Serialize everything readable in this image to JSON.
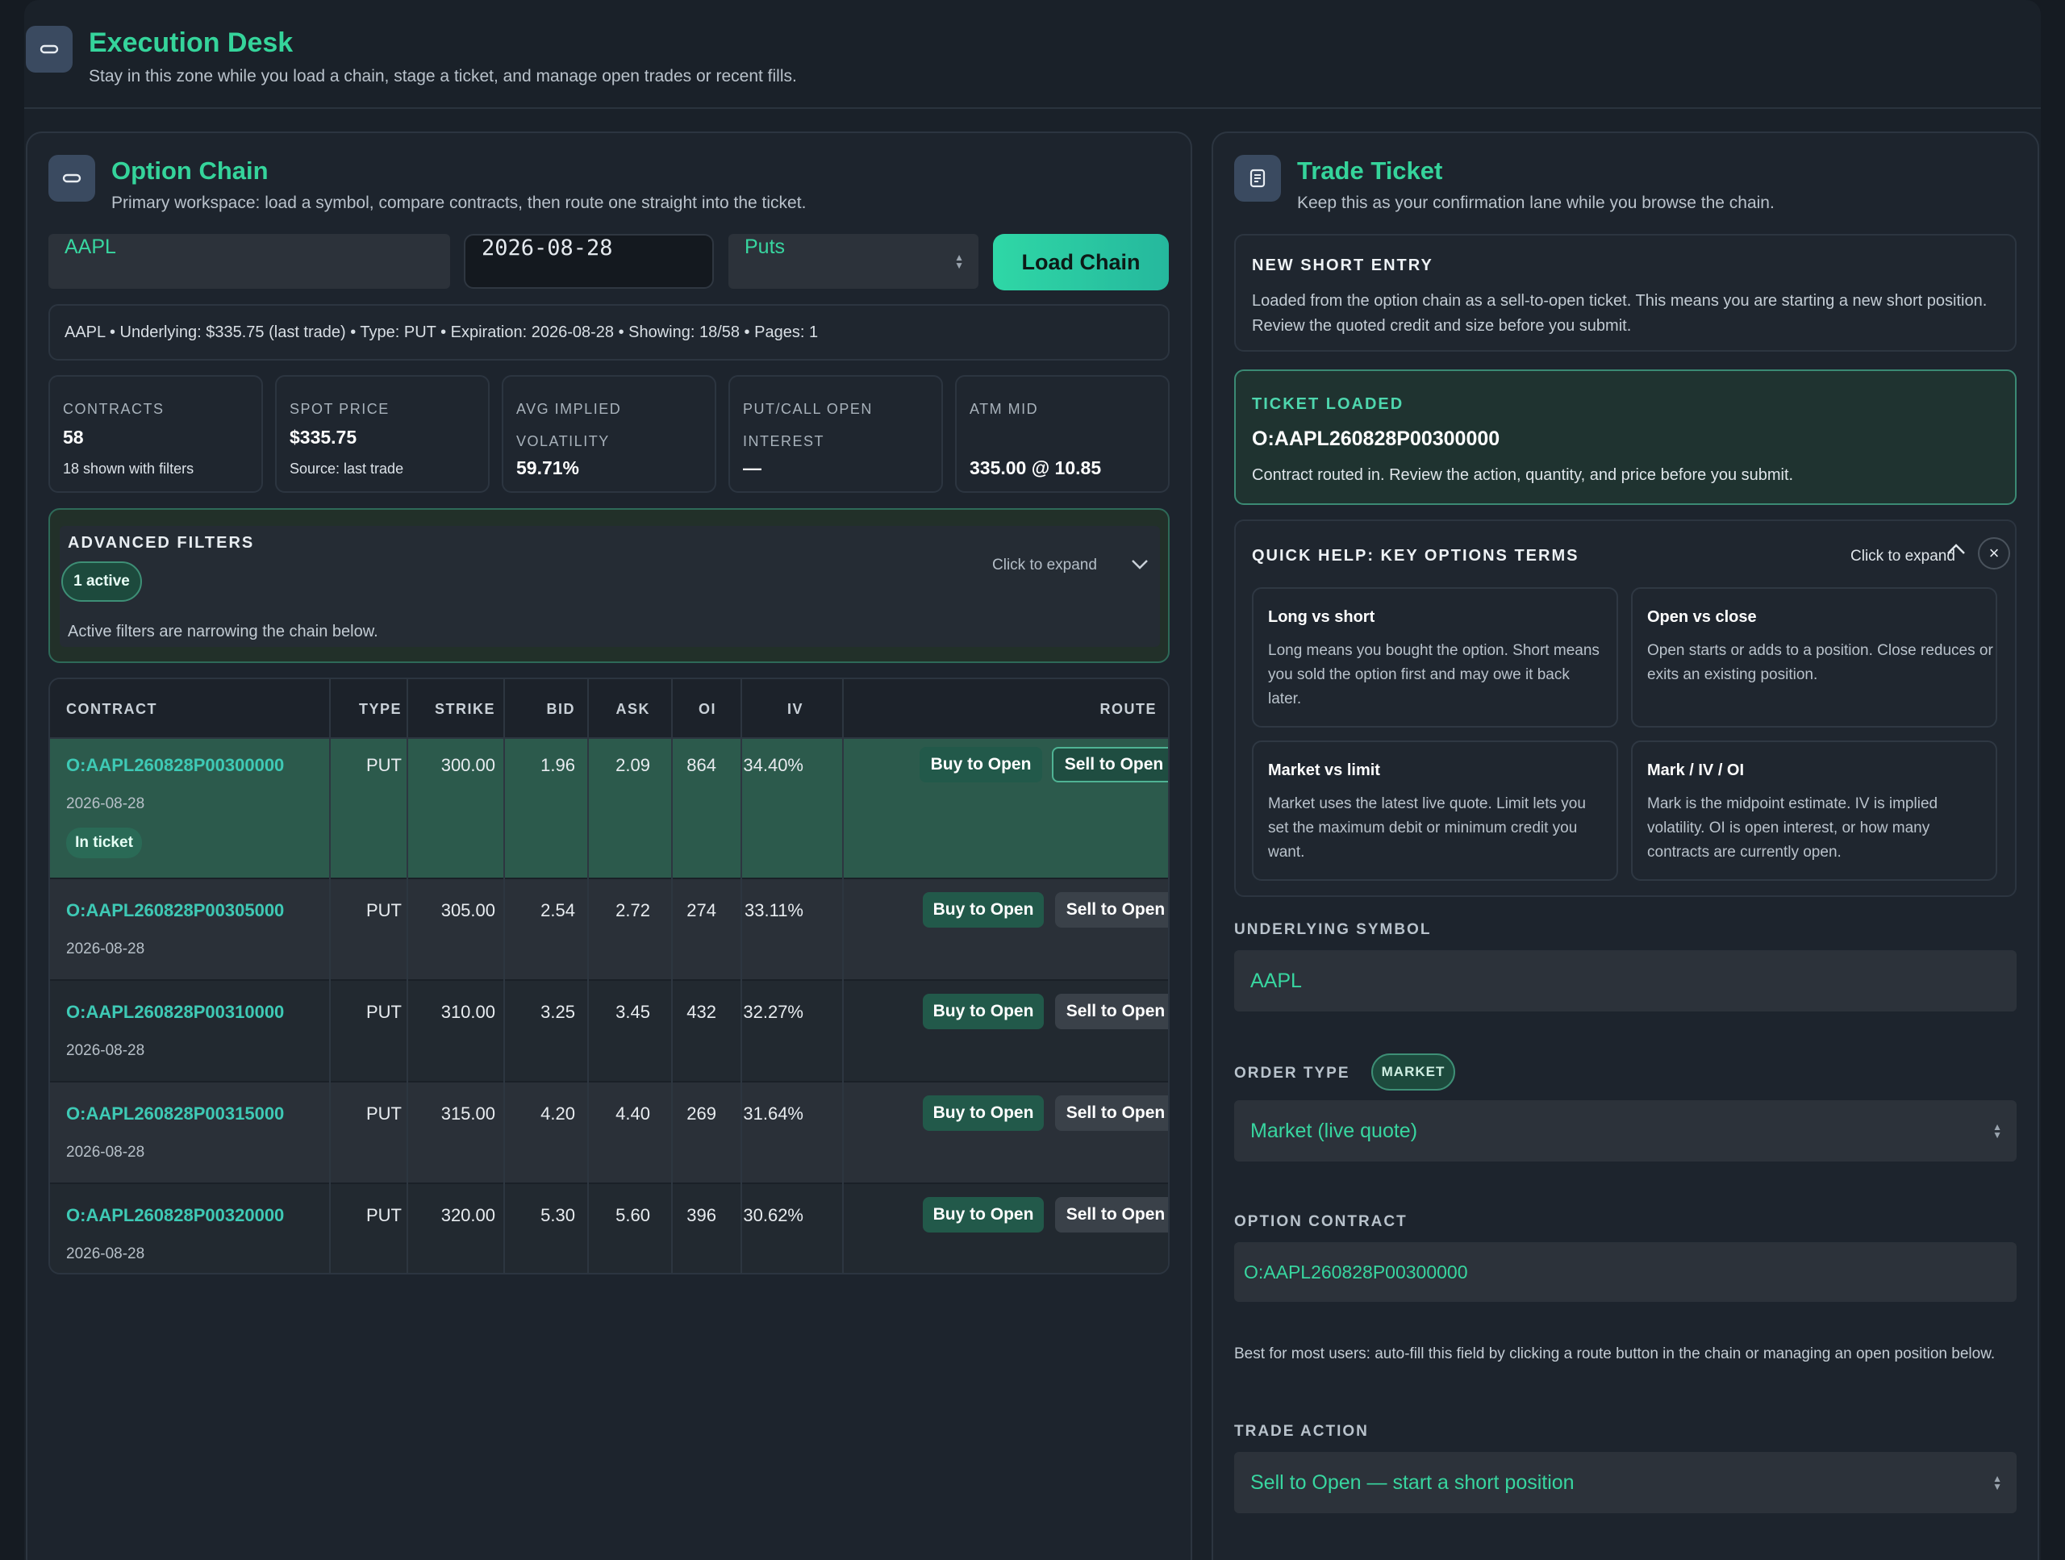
{
  "header": {
    "title": "Execution Desk",
    "subtitle": "Stay in this zone while you load a chain, stage a ticket, and manage open trades or recent fills."
  },
  "chain": {
    "title": "Option Chain",
    "subtitle": "Primary workspace: load a symbol, compare contracts, then route one straight into the ticket.",
    "symbol_value": "AAPL",
    "expiration_value": "2026-08-28",
    "type_value": "Puts",
    "load_label": "Load Chain",
    "summary": "AAPL • Underlying: $335.75 (last trade) • Type: PUT • Expiration: 2026-08-28 • Showing: 18/58 • Pages: 1",
    "stats": [
      {
        "label": "CONTRACTS",
        "value": "58",
        "note": "18 shown with filters"
      },
      {
        "label": "SPOT PRICE",
        "value": "$335.75",
        "note": "Source: last trade"
      },
      {
        "label": "AVG IMPLIED VOLATILITY",
        "value": "59.71%",
        "note": ""
      },
      {
        "label": "PUT/CALL OPEN INTEREST",
        "value": "—",
        "note": ""
      },
      {
        "label": "ATM MID",
        "value": "335.00 @ 10.85",
        "note": ""
      }
    ],
    "filters": {
      "label": "ADVANCED FILTERS",
      "badge": "1 active",
      "expand": "Click to expand",
      "note": "Active filters are narrowing the chain below."
    },
    "columns": [
      "CONTRACT",
      "TYPE",
      "STRIKE",
      "BID",
      "ASK",
      "OI",
      "IV",
      "ROUTE"
    ],
    "rows": [
      {
        "contract": "O:AAPL260828P00300000",
        "date": "2026-08-28",
        "type": "PUT",
        "strike": "300.00",
        "bid": "1.96",
        "ask": "2.09",
        "oi": "864",
        "iv": "34.40%",
        "buy": "Buy to Open",
        "sell": "Sell to Open",
        "badge": "In ticket"
      },
      {
        "contract": "O:AAPL260828P00305000",
        "date": "2026-08-28",
        "type": "PUT",
        "strike": "305.00",
        "bid": "2.54",
        "ask": "2.72",
        "oi": "274",
        "iv": "33.11%",
        "buy": "Buy to Open",
        "sell": "Sell to Open"
      },
      {
        "contract": "O:AAPL260828P00310000",
        "date": "2026-08-28",
        "type": "PUT",
        "strike": "310.00",
        "bid": "3.25",
        "ask": "3.45",
        "oi": "432",
        "iv": "32.27%",
        "buy": "Buy to Open",
        "sell": "Sell to Open"
      },
      {
        "contract": "O:AAPL260828P00315000",
        "date": "2026-08-28",
        "type": "PUT",
        "strike": "315.00",
        "bid": "4.20",
        "ask": "4.40",
        "oi": "269",
        "iv": "31.64%",
        "buy": "Buy to Open",
        "sell": "Sell to Open"
      },
      {
        "contract": "O:AAPL260828P00320000",
        "date": "2026-08-28",
        "type": "PUT",
        "strike": "320.00",
        "bid": "5.30",
        "ask": "5.60",
        "oi": "396",
        "iv": "30.62%",
        "buy": "Buy to Open",
        "sell": "Sell to Open"
      }
    ]
  },
  "ticket": {
    "title": "Trade Ticket",
    "subtitle": "Keep this as your confirmation lane while you browse the chain.",
    "entry_label": "NEW SHORT ENTRY",
    "entry_text": "Loaded from the option chain as a sell-to-open ticket. This means you are starting a new short position. Review the quoted credit and size before you submit.",
    "loaded_label": "TICKET LOADED",
    "loaded_contract": "O:AAPL260828P00300000",
    "loaded_text": "Contract routed in. Review the action, quantity, and price before you submit.",
    "help_label": "QUICK HELP: KEY OPTIONS TERMS",
    "help_expand": "Click to expand",
    "close_glyph": "×",
    "terms": [
      {
        "title": "Long vs short",
        "body": "Long means you bought the option. Short means you sold the option first and may owe it back later."
      },
      {
        "title": "Open vs close",
        "body": "Open starts or adds to a position. Close reduces or exits an existing position."
      },
      {
        "title": "Market vs limit",
        "body": "Market uses the latest live quote. Limit lets you set the maximum debit or minimum credit you want."
      },
      {
        "title": "Mark / IV / OI",
        "body": "Mark is the midpoint estimate. IV is implied volatility. OI is open interest, or how many contracts are currently open."
      }
    ],
    "underlying_label": "UNDERLYING SYMBOL",
    "underlying_value": "AAPL",
    "order_type_label": "ORDER TYPE",
    "order_type_badge": "MARKET",
    "order_type_value": "Market (live quote)",
    "contract_label": "OPTION CONTRACT",
    "contract_value": "O:AAPL260828P00300000",
    "contract_hint": "Best for most users: auto-fill this field by clicking a route button in the chain or managing an open position below.",
    "action_label": "TRADE ACTION",
    "action_value": "Sell to Open — start a short position"
  },
  "colors": {
    "accent": "#35d49b",
    "link": "#3ec9b5",
    "selected_row": "#2c5a4c"
  }
}
